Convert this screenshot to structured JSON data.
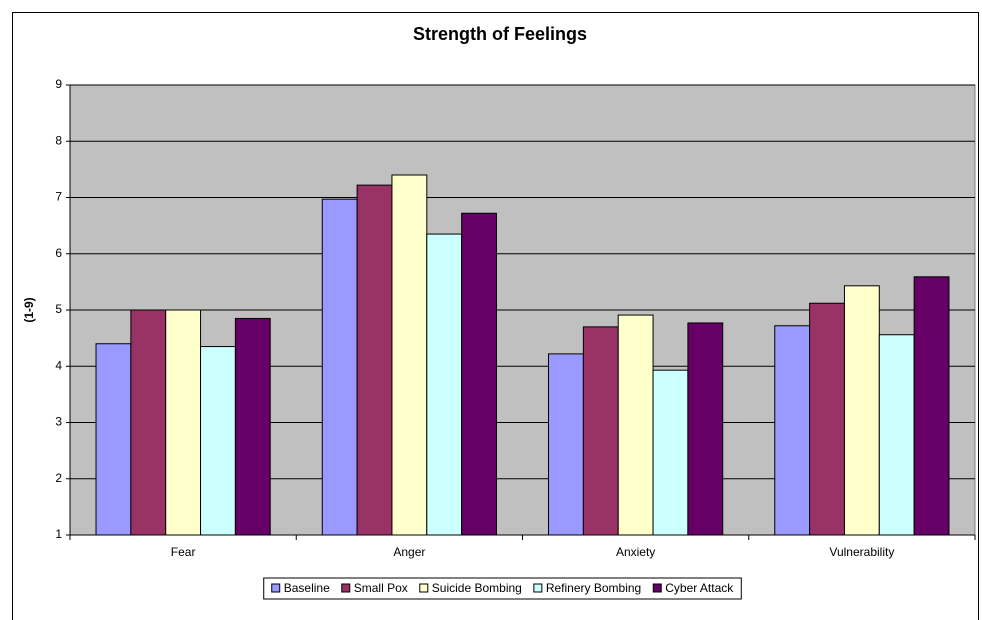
{
  "chart_data": {
    "type": "bar",
    "title": "Strength of Feelings",
    "y_label": "(1-9)",
    "categories": [
      "Fear",
      "Anger",
      "Anxiety",
      "Vulnerability"
    ],
    "series": [
      {
        "name": "Baseline",
        "color": "#9999ff",
        "values": [
          4.4,
          6.97,
          4.22,
          4.72
        ]
      },
      {
        "name": "Small Pox",
        "color": "#993366",
        "values": [
          5.0,
          7.22,
          4.7,
          5.12
        ]
      },
      {
        "name": "Suicide Bombing",
        "color": "#ffffcc",
        "values": [
          5.0,
          7.4,
          4.91,
          5.43
        ]
      },
      {
        "name": "Refinery Bombing",
        "color": "#ccffff",
        "values": [
          4.35,
          6.35,
          3.93,
          4.56
        ]
      },
      {
        "name": "Cyber Attack",
        "color": "#660066",
        "values": [
          4.85,
          6.72,
          4.77,
          5.59
        ]
      }
    ],
    "ylim": [
      1,
      9
    ],
    "yticks": [
      1,
      2,
      3,
      4,
      5,
      6,
      7,
      8,
      9
    ],
    "grid": true,
    "legend": "bottom",
    "plot_background": "#c0c0c0"
  }
}
